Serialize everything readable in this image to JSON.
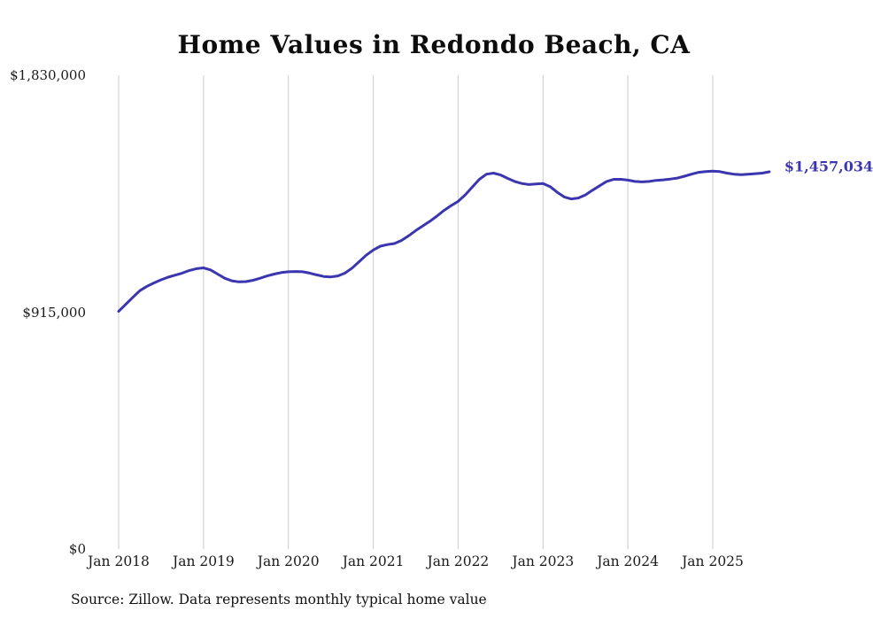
{
  "chart_data": {
    "type": "line",
    "title": "Home Values in Redondo Beach, CA",
    "source": "Source: Zillow. Data represents monthly typical home value",
    "end_label": "$1,457,034",
    "line_color": "#3b35b0",
    "grid_color": "#cccccc",
    "ylim": [
      0,
      1830000
    ],
    "y_ticks": [
      {
        "label": "$0",
        "value": 0
      },
      {
        "label": "$915,000",
        "value": 915000
      },
      {
        "label": "$1,830,000",
        "value": 1830000
      }
    ],
    "x_ticks": [
      "Jan 2018",
      "Jan 2019",
      "Jan 2020",
      "Jan 2021",
      "Jan 2022",
      "Jan 2023",
      "Jan 2024",
      "Jan 2025"
    ],
    "x_start": "Jan 2018",
    "frequency": "monthly",
    "legend": "none",
    "grid": "vertical-only",
    "values": [
      918000,
      945000,
      972000,
      998000,
      1015000,
      1028000,
      1040000,
      1050000,
      1058000,
      1066000,
      1076000,
      1083000,
      1086000,
      1078000,
      1062000,
      1046000,
      1036000,
      1032000,
      1033000,
      1038000,
      1046000,
      1055000,
      1062000,
      1068000,
      1071000,
      1072000,
      1071000,
      1066000,
      1059000,
      1053000,
      1051000,
      1055000,
      1066000,
      1085000,
      1110000,
      1135000,
      1155000,
      1170000,
      1176000,
      1180000,
      1192000,
      1210000,
      1230000,
      1248000,
      1266000,
      1286000,
      1308000,
      1326000,
      1343000,
      1368000,
      1398000,
      1428000,
      1448000,
      1452000,
      1445000,
      1432000,
      1420000,
      1412000,
      1408000,
      1410000,
      1412000,
      1400000,
      1378000,
      1360000,
      1352000,
      1356000,
      1368000,
      1386000,
      1403000,
      1420000,
      1428000,
      1428000,
      1425000,
      1420000,
      1418000,
      1420000,
      1424000,
      1426000,
      1429000,
      1433000,
      1440000,
      1448000,
      1455000,
      1458000,
      1460000,
      1458000,
      1452000,
      1448000,
      1446000,
      1448000,
      1450000,
      1452000,
      1457034
    ]
  }
}
